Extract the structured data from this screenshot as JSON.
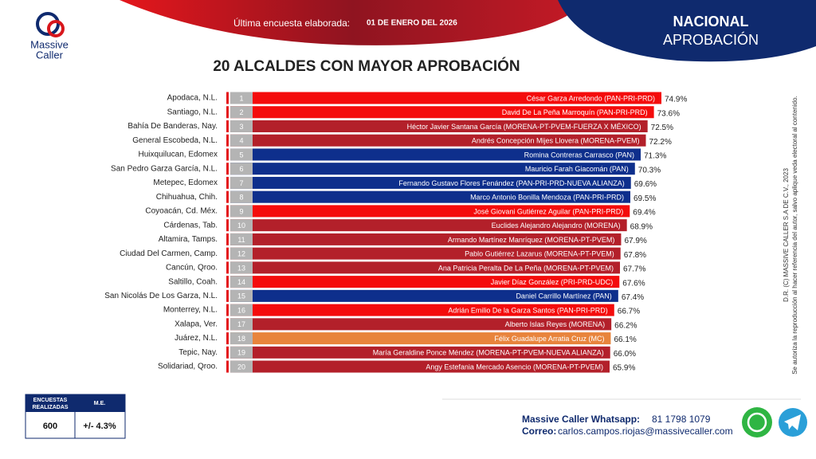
{
  "header": {
    "logo_line1": "Massive",
    "logo_line2": "Caller",
    "survey_label": "Última encuesta elaborada:",
    "survey_date": "01 DE ENERO DEL 2026",
    "scope": "NACIONAL",
    "subject": "APROBACIÓN"
  },
  "chart_data": {
    "type": "bar",
    "orientation": "horizontal",
    "title": "20 ALCALDES CON MAYOR APROBACIÓN",
    "categories": [
      "Apodaca, N.L.",
      "Santiago, N.L.",
      "Bahía De Banderas, Nay.",
      "General Escobeda, N.L.",
      "Huixquilucan, Edomex",
      "San Pedro Garza García, N.L.",
      "Metepec, Edomex",
      "Chihuahua, Chih.",
      "Coyoacán, Cd. Méx.",
      "Cárdenas, Tab.",
      "Altamira, Tamps.",
      "Ciudad Del Carmen, Camp.",
      "Cancún, Qroo.",
      "Saltillo, Coah.",
      "San Nicolás De Los Garza, N.L.",
      "Monterrey, N.L.",
      "Xalapa, Ver.",
      "Juárez, N.L.",
      "Tepic, Nay.",
      "Solidariad, Qroo."
    ],
    "ranks": [
      1,
      2,
      3,
      4,
      5,
      6,
      7,
      8,
      9,
      10,
      11,
      12,
      13,
      14,
      15,
      16,
      17,
      18,
      19,
      20
    ],
    "bar_labels": [
      "César Garza Arredondo (PAN-PRI-PRD)",
      "David De La Peña Marroquín (PAN-PRI-PRD)",
      "Héctor Javier Santana García (MORENA-PT-PVEM-FUERZA X MÉXICO)",
      "Andrés Concepción Mijes Llovera (MORENA-PVEM)",
      "Romina Contreras Carrasco (PAN)",
      "Mauricio Farah Giacomán (PAN)",
      "Fernando Gustavo Flores Fenández (PAN-PRI-PRD-NUEVA ALIANZA)",
      "Marco Antonio Bonilla Mendoza (PAN-PRI-PRD)",
      "José Giovani Gutiérrez Aguilar (PAN-PRI-PRD)",
      "Euclides Alejandro Alejandro (MORENA)",
      "Armando Martínez Manríquez (MORENA-PT-PVEM)",
      "Pablo Gutiérrez Lazarus (MORENA-PT-PVEM)",
      "Ana Patricia Peralta De La Peña (MORENA-PT-PVEM)",
      "Javier Díaz González (PRI-PRD-UDC)",
      "Daniel Carrillo Martínez (PAN)",
      "Adrián Emilio De la Garza Santos (PAN-PRI-PRD)",
      "Alberto Islas Reyes (MORENA)",
      "Félix Guadalupe Arratia Cruz (MC)",
      "María Geraldine Ponce Méndez (MORENA-PT-PVEM-NUEVA ALIANZA)",
      "Angy Estefania Mercado Asencio (MORENA-PT-PVEM)"
    ],
    "values": [
      74.9,
      73.6,
      72.5,
      72.2,
      71.3,
      70.3,
      69.6,
      69.5,
      69.4,
      68.9,
      67.9,
      67.8,
      67.7,
      67.6,
      67.4,
      66.7,
      66.2,
      66.1,
      66.0,
      65.9
    ],
    "value_labels": [
      "74.9%",
      "73.6%",
      "72.5%",
      "72.2%",
      "71.3%",
      "70.3%",
      "69.6%",
      "69.5%",
      "69.4%",
      "68.9%",
      "67.9%",
      "67.8%",
      "67.7%",
      "67.6%",
      "67.4%",
      "66.7%",
      "66.2%",
      "66.1%",
      "66.0%",
      "65.9%"
    ],
    "colors": [
      "#f40c0c",
      "#f40c0c",
      "#b3202a",
      "#b3202a",
      "#0e2f8c",
      "#0e2f8c",
      "#0e2f8c",
      "#0e2f8c",
      "#f40c0c",
      "#b3202a",
      "#b3202a",
      "#b3202a",
      "#b3202a",
      "#f40c0c",
      "#0e2f8c",
      "#f40c0c",
      "#b3202a",
      "#e8843c",
      "#b3202a",
      "#b3202a"
    ]
  },
  "side_note": {
    "line1": "D.R. (C) MASSIVE CALLER S.A DE C.V., 2023",
    "line2": "Se autoriza la reproducción al hacer referencia del autor, salvo aplique veda electoral al contenido."
  },
  "stats_table": {
    "headers": [
      "ENCUESTAS REALIZADAS",
      "M.E."
    ],
    "row": [
      "600",
      "+/- 4.3%"
    ]
  },
  "contact": {
    "whatsapp_label": "Massive Caller Whatsapp:",
    "whatsapp": "81 1798 1079",
    "email_label": "Correo:",
    "email": "carlos.campos.riojas@massivecaller.com"
  }
}
